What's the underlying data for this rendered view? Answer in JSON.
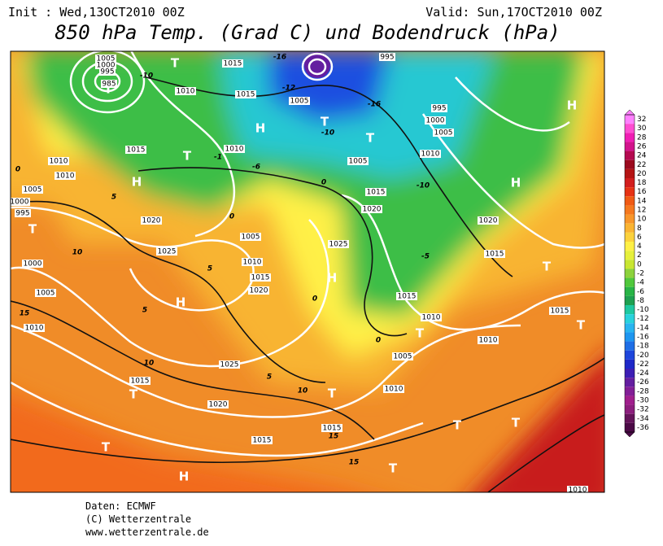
{
  "header": {
    "init": "Init : Wed,13OCT2010 00Z",
    "valid": "Valid: Sun,17OCT2010 00Z",
    "title": "850 hPa Temp. (Grad C) und Bodendruck (hPa)"
  },
  "map": {
    "labels": [
      "T",
      "T",
      "H",
      "T",
      "T",
      "T",
      "H",
      "T",
      "H",
      "H",
      "H",
      "H",
      "T",
      "T",
      "T",
      "T",
      "T",
      "T",
      "H",
      "T",
      "T",
      "T",
      "1005",
      "1000",
      "995",
      "985",
      "1015",
      "995",
      "1010",
      "1015",
      "1005",
      "995",
      "1000",
      "1005",
      "1015",
      "1010",
      "1010",
      "1005",
      "1010",
      "1010",
      "1005",
      "1000",
      "995",
      "1015",
      "1020",
      "1020",
      "1020",
      "1005",
      "1025",
      "1015",
      "1025",
      "1010",
      "1000",
      "1015",
      "1020",
      "1005",
      "1015",
      "1010",
      "1015",
      "1010",
      "1010",
      "1005",
      "1025",
      "1015",
      "1010",
      "1020",
      "1015",
      "1015",
      "1010",
      "-10",
      "-16",
      "-12",
      "-16",
      "-10",
      "-10",
      "-1",
      "-6",
      "0",
      "0",
      "0",
      "5",
      "10",
      "5",
      "-5",
      "5",
      "15",
      "10",
      "5",
      "10",
      "15",
      "15",
      "0",
      "0"
    ]
  },
  "colorbar": {
    "ticks": [
      32,
      30,
      28,
      26,
      24,
      22,
      20,
      18,
      16,
      14,
      12,
      10,
      8,
      6,
      4,
      2,
      0,
      -2,
      -4,
      -6,
      -8,
      -10,
      -12,
      -14,
      -16,
      -18,
      -20,
      -22,
      -24,
      -26,
      -28,
      -30,
      -32,
      -34,
      -36
    ],
    "colors": [
      "#ff80ff",
      "#ff4dd2",
      "#f01eb4",
      "#d2148c",
      "#b40a50",
      "#9b0a1e",
      "#b41414",
      "#d21e1e",
      "#e63214",
      "#f05a14",
      "#f5781e",
      "#f8962a",
      "#fab432",
      "#fcd23c",
      "#fff046",
      "#e6f03c",
      "#c8e632",
      "#8cd23c",
      "#50c83c",
      "#28b446",
      "#1ea050",
      "#1ec8a0",
      "#28d2dc",
      "#28b4f0",
      "#1e96f0",
      "#1e6ee6",
      "#1e46dc",
      "#1e28c8",
      "#3c1eb4",
      "#641ea0",
      "#821e96",
      "#a01e8c",
      "#8c1e7d",
      "#64145a",
      "#4b0a46"
    ]
  },
  "footer": {
    "source": "Daten: ECMWF",
    "copyright": "(C) Wetterzentrale",
    "url": "www.wetterzentrale.de"
  }
}
